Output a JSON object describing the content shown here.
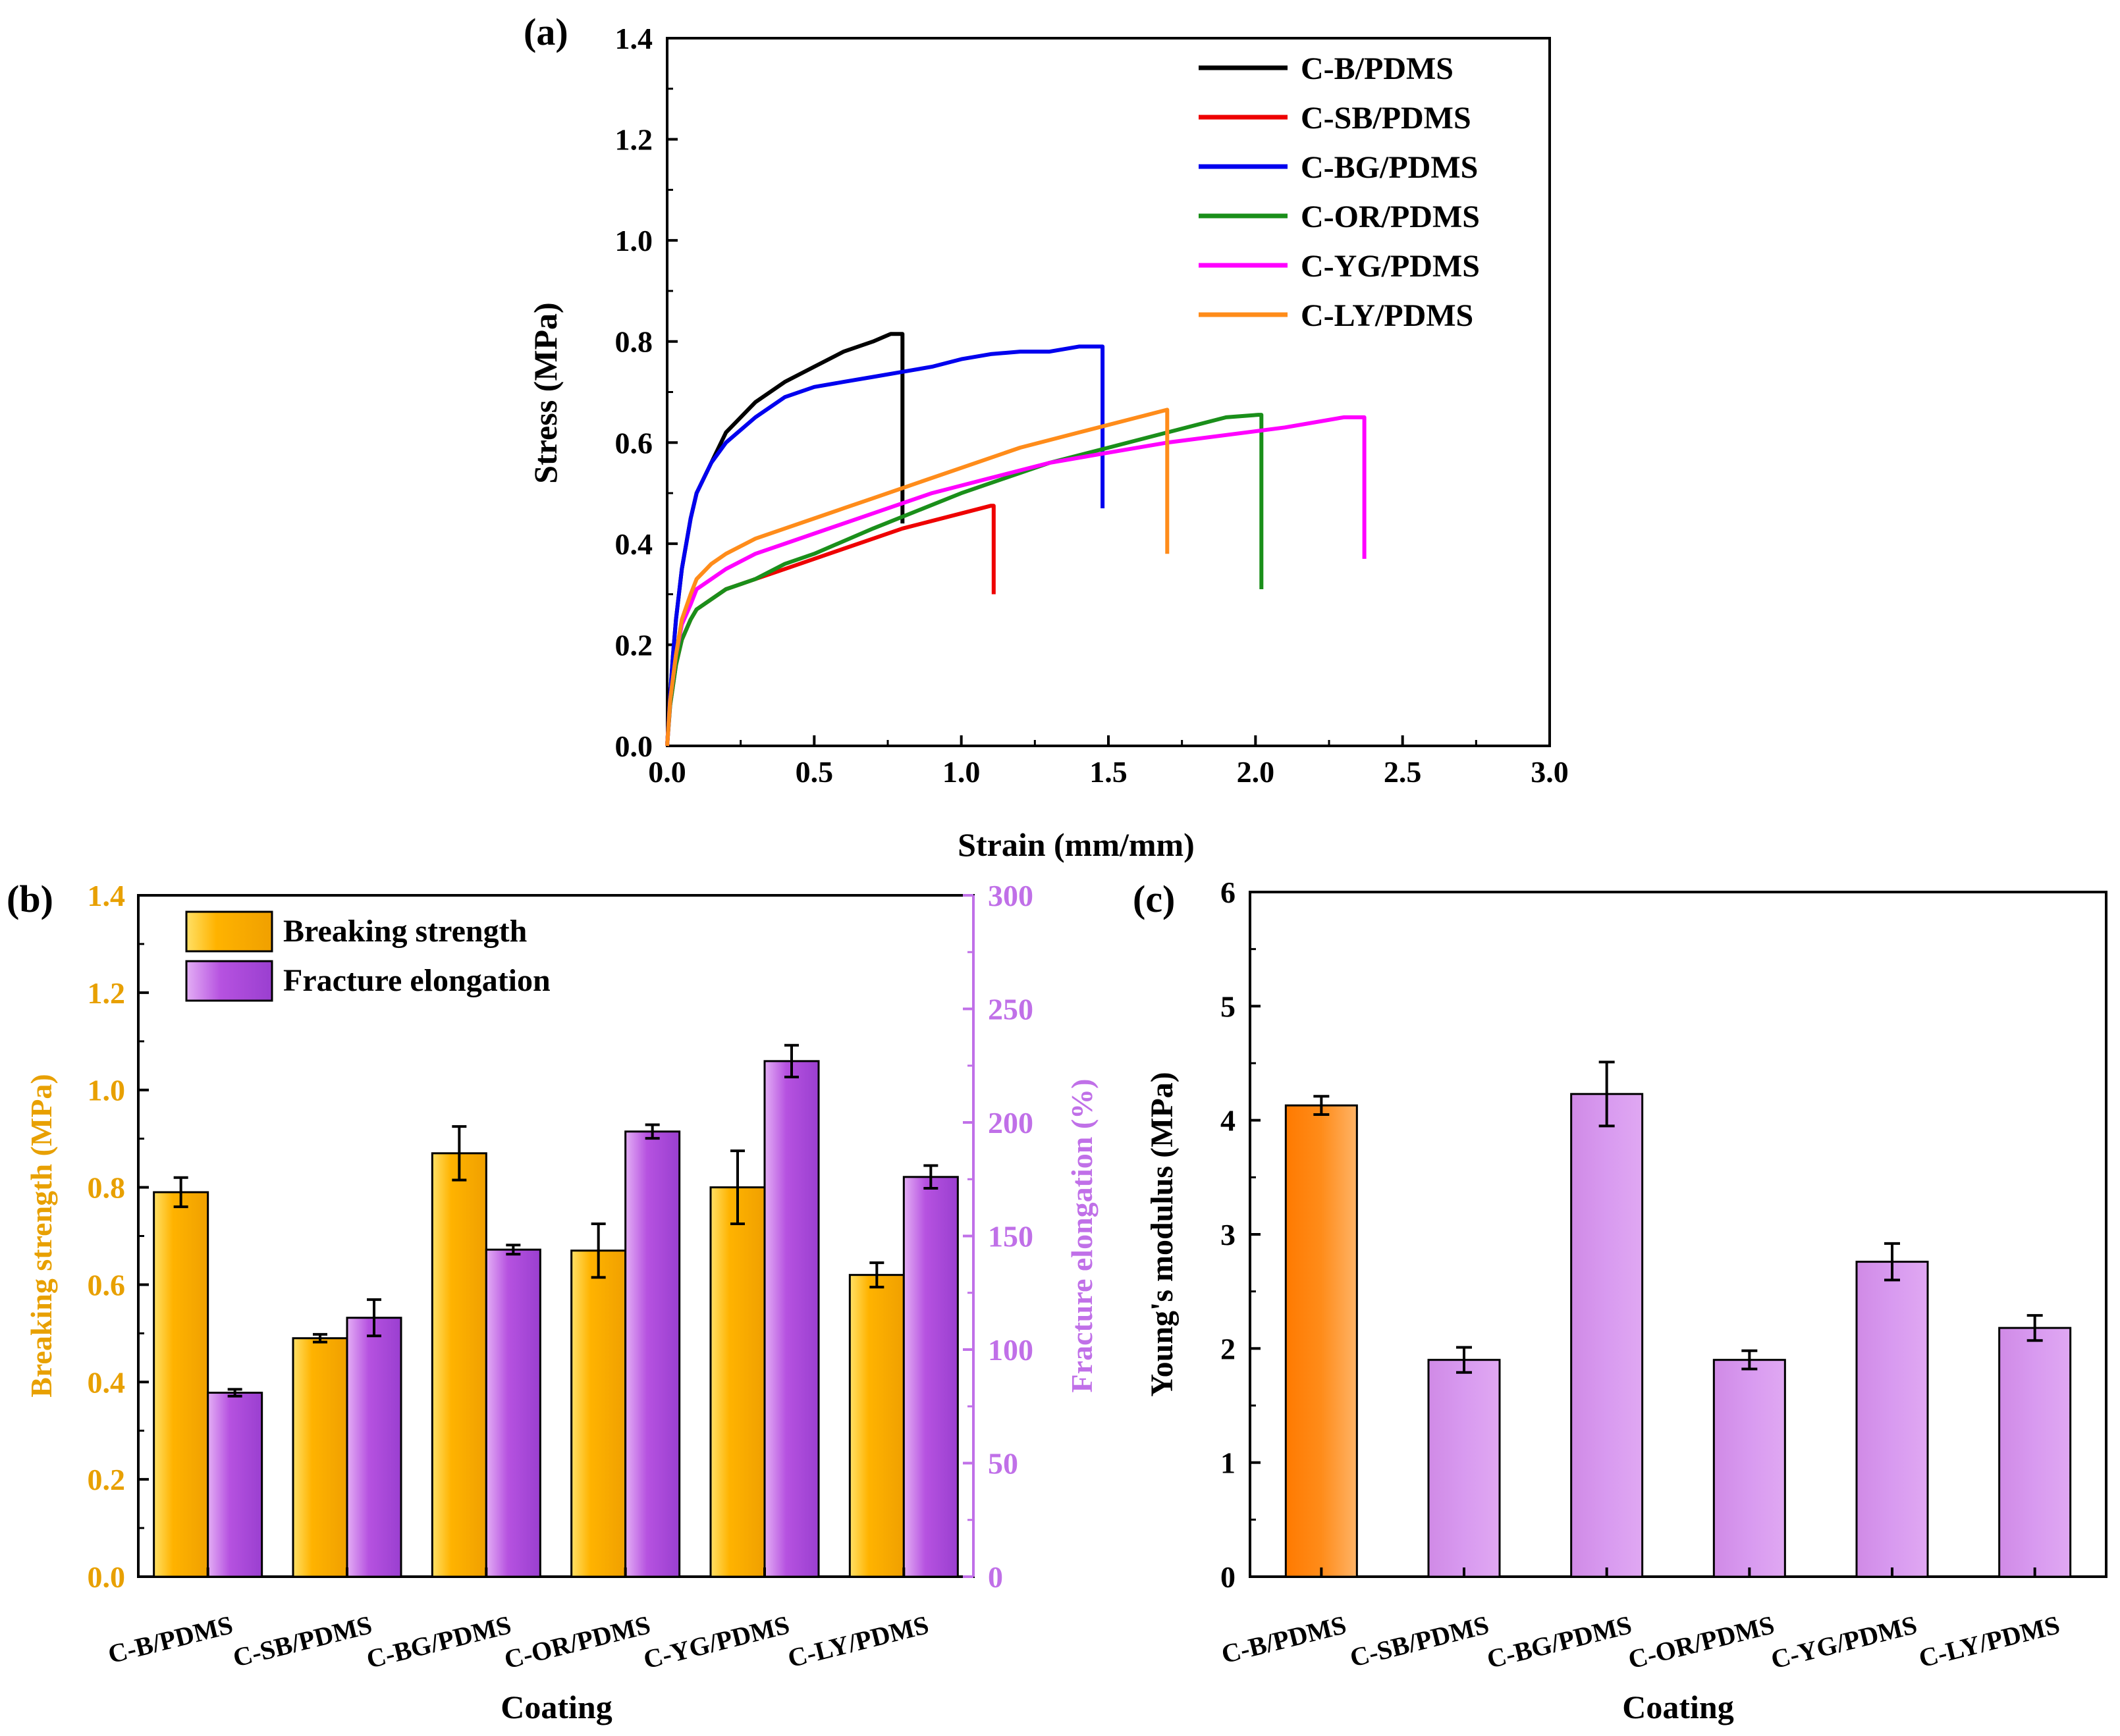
{
  "chart_data": [
    {
      "panel": "(a)",
      "type": "line",
      "xlabel": "Strain (mm/mm)",
      "ylabel": "Stress (MPa)",
      "xlim": [
        0,
        3.0
      ],
      "ylim": [
        0,
        1.4
      ],
      "xticks": [
        "0.0",
        "0.5",
        "1.0",
        "1.5",
        "2.0",
        "2.5",
        "3.0"
      ],
      "yticks": [
        "0.0",
        "0.2",
        "0.4",
        "0.6",
        "0.8",
        "1.0",
        "1.2",
        "1.4"
      ],
      "legend_position": "top-right",
      "series": [
        {
          "name": "C-B/PDMS",
          "color": "#000000",
          "points": [
            [
              0,
              0
            ],
            [
              0.01,
              0.1
            ],
            [
              0.02,
              0.18
            ],
            [
              0.03,
              0.25
            ],
            [
              0.05,
              0.35
            ],
            [
              0.08,
              0.45
            ],
            [
              0.1,
              0.5
            ],
            [
              0.15,
              0.56
            ],
            [
              0.2,
              0.62
            ],
            [
              0.25,
              0.65
            ],
            [
              0.3,
              0.68
            ],
            [
              0.4,
              0.72
            ],
            [
              0.5,
              0.75
            ],
            [
              0.6,
              0.78
            ],
            [
              0.7,
              0.8
            ],
            [
              0.76,
              0.815
            ],
            [
              0.8,
              0.815
            ],
            [
              0.8,
              0.44
            ]
          ]
        },
        {
          "name": "C-SB/PDMS",
          "color": "#ee0000",
          "points": [
            [
              0,
              0
            ],
            [
              0.01,
              0.08
            ],
            [
              0.03,
              0.16
            ],
            [
              0.05,
              0.21
            ],
            [
              0.08,
              0.25
            ],
            [
              0.1,
              0.27
            ],
            [
              0.2,
              0.31
            ],
            [
              0.3,
              0.33
            ],
            [
              0.4,
              0.35
            ],
            [
              0.5,
              0.37
            ],
            [
              0.6,
              0.39
            ],
            [
              0.7,
              0.41
            ],
            [
              0.8,
              0.43
            ],
            [
              0.9,
              0.445
            ],
            [
              1.0,
              0.46
            ],
            [
              1.1,
              0.475
            ],
            [
              1.11,
              0.475
            ],
            [
              1.11,
              0.3
            ]
          ]
        },
        {
          "name": "C-BG/PDMS",
          "color": "#0000ee",
          "points": [
            [
              0,
              0
            ],
            [
              0.01,
              0.1
            ],
            [
              0.02,
              0.18
            ],
            [
              0.03,
              0.25
            ],
            [
              0.05,
              0.35
            ],
            [
              0.08,
              0.45
            ],
            [
              0.1,
              0.5
            ],
            [
              0.15,
              0.56
            ],
            [
              0.2,
              0.6
            ],
            [
              0.3,
              0.65
            ],
            [
              0.4,
              0.69
            ],
            [
              0.5,
              0.71
            ],
            [
              0.6,
              0.72
            ],
            [
              0.7,
              0.73
            ],
            [
              0.8,
              0.74
            ],
            [
              0.9,
              0.75
            ],
            [
              1.0,
              0.765
            ],
            [
              1.1,
              0.775
            ],
            [
              1.2,
              0.78
            ],
            [
              1.3,
              0.78
            ],
            [
              1.4,
              0.79
            ],
            [
              1.48,
              0.79
            ],
            [
              1.48,
              0.47
            ]
          ]
        },
        {
          "name": "C-OR/PDMS",
          "color": "#1a8f1a",
          "points": [
            [
              0,
              0
            ],
            [
              0.01,
              0.08
            ],
            [
              0.03,
              0.16
            ],
            [
              0.05,
              0.21
            ],
            [
              0.08,
              0.25
            ],
            [
              0.1,
              0.27
            ],
            [
              0.2,
              0.31
            ],
            [
              0.3,
              0.33
            ],
            [
              0.4,
              0.36
            ],
            [
              0.5,
              0.38
            ],
            [
              0.7,
              0.43
            ],
            [
              1.0,
              0.5
            ],
            [
              1.3,
              0.56
            ],
            [
              1.5,
              0.59
            ],
            [
              1.7,
              0.62
            ],
            [
              1.8,
              0.635
            ],
            [
              1.9,
              0.65
            ],
            [
              2.01,
              0.655
            ],
            [
              2.02,
              0.655
            ],
            [
              2.02,
              0.31
            ]
          ]
        },
        {
          "name": "C-YG/PDMS",
          "color": "#ff00ff",
          "points": [
            [
              0,
              0
            ],
            [
              0.01,
              0.09
            ],
            [
              0.03,
              0.18
            ],
            [
              0.05,
              0.24
            ],
            [
              0.08,
              0.28
            ],
            [
              0.1,
              0.31
            ],
            [
              0.2,
              0.35
            ],
            [
              0.3,
              0.38
            ],
            [
              0.4,
              0.4
            ],
            [
              0.5,
              0.42
            ],
            [
              0.7,
              0.46
            ],
            [
              0.9,
              0.5
            ],
            [
              1.1,
              0.53
            ],
            [
              1.3,
              0.56
            ],
            [
              1.5,
              0.58
            ],
            [
              1.7,
              0.6
            ],
            [
              1.9,
              0.615
            ],
            [
              2.1,
              0.63
            ],
            [
              2.3,
              0.65
            ],
            [
              2.37,
              0.65
            ],
            [
              2.37,
              0.37
            ]
          ]
        },
        {
          "name": "C-LY/PDMS",
          "color": "#ff8c1a",
          "points": [
            [
              0,
              0
            ],
            [
              0.01,
              0.09
            ],
            [
              0.03,
              0.18
            ],
            [
              0.05,
              0.25
            ],
            [
              0.08,
              0.3
            ],
            [
              0.1,
              0.33
            ],
            [
              0.15,
              0.36
            ],
            [
              0.2,
              0.38
            ],
            [
              0.3,
              0.41
            ],
            [
              0.4,
              0.43
            ],
            [
              0.5,
              0.45
            ],
            [
              0.6,
              0.47
            ],
            [
              0.7,
              0.49
            ],
            [
              0.8,
              0.51
            ],
            [
              1.0,
              0.55
            ],
            [
              1.2,
              0.59
            ],
            [
              1.4,
              0.62
            ],
            [
              1.6,
              0.65
            ],
            [
              1.7,
              0.665
            ],
            [
              1.7,
              0.38
            ]
          ]
        }
      ]
    },
    {
      "panel": "(b)",
      "type": "bar",
      "categories": [
        "C-B/PDMS",
        "C-SB/PDMS",
        "C-BG/PDMS",
        "C-OR/PDMS",
        "C-YG/PDMS",
        "C-LY/PDMS"
      ],
      "xlabel": "Coating",
      "ylabel": "Breaking strength (MPa)",
      "ylabel_right": "Fracture elongation (%)",
      "ylim": [
        0,
        1.4
      ],
      "ylim_right": [
        0,
        300
      ],
      "yticks": [
        "0.0",
        "0.2",
        "0.4",
        "0.6",
        "0.8",
        "1.0",
        "1.2",
        "1.4"
      ],
      "yticks_right": [
        "0",
        "50",
        "100",
        "150",
        "200",
        "250",
        "300"
      ],
      "legend_position": "top-left",
      "series": [
        {
          "name": "Breaking strength",
          "axis": "left",
          "color": "#ffb300",
          "values": [
            0.79,
            0.49,
            0.87,
            0.67,
            0.8,
            0.62
          ],
          "errors": [
            0.03,
            0.008,
            0.055,
            0.055,
            0.075,
            0.025
          ]
        },
        {
          "name": "Fracture elongation",
          "axis": "right",
          "color": "#b652e0",
          "values": [
            81,
            114,
            144,
            196,
            227,
            176
          ],
          "errors": [
            1.5,
            8,
            2,
            3,
            7,
            5
          ]
        }
      ]
    },
    {
      "panel": "(c)",
      "type": "bar",
      "categories": [
        "C-B/PDMS",
        "C-SB/PDMS",
        "C-BG/PDMS",
        "C-OR/PDMS",
        "C-YG/PDMS",
        "C-LY/PDMS"
      ],
      "xlabel": "Coating",
      "ylabel": "Young's modulus (MPa)",
      "ylim": [
        0,
        6
      ],
      "yticks": [
        "0",
        "1",
        "2",
        "3",
        "4",
        "5",
        "6"
      ],
      "values": [
        4.13,
        1.9,
        4.23,
        1.9,
        2.76,
        2.18
      ],
      "errors": [
        0.08,
        0.11,
        0.28,
        0.08,
        0.16,
        0.11
      ],
      "colors": [
        "#ff8c00",
        "#d48be8",
        "#d48be8",
        "#d48be8",
        "#d48be8",
        "#d48be8"
      ]
    }
  ]
}
